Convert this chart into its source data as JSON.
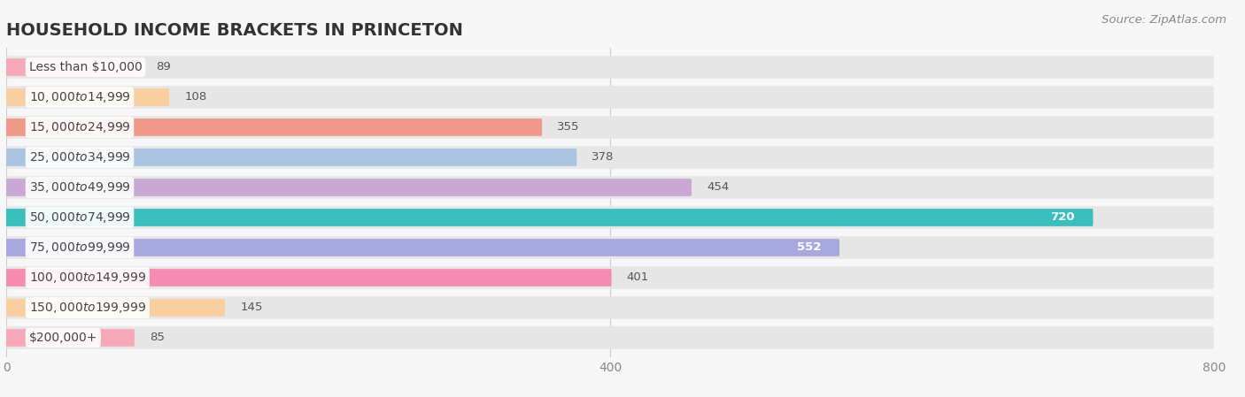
{
  "title": "HOUSEHOLD INCOME BRACKETS IN PRINCETON",
  "source": "Source: ZipAtlas.com",
  "categories": [
    "Less than $10,000",
    "$10,000 to $14,999",
    "$15,000 to $24,999",
    "$25,000 to $34,999",
    "$35,000 to $49,999",
    "$50,000 to $74,999",
    "$75,000 to $99,999",
    "$100,000 to $149,999",
    "$150,000 to $199,999",
    "$200,000+"
  ],
  "values": [
    89,
    108,
    355,
    378,
    454,
    720,
    552,
    401,
    145,
    85
  ],
  "bar_colors": [
    "#f7a8b8",
    "#f9cfa0",
    "#f0998a",
    "#a8c4e0",
    "#c9a8d4",
    "#3abfbf",
    "#a8a8e0",
    "#f78ab0",
    "#f9cfa0",
    "#f7a8b8"
  ],
  "background_color": "#f7f7f7",
  "bar_bg_color": "#e6e6e6",
  "xlim": [
    0,
    800
  ],
  "xticks": [
    0,
    400,
    800
  ],
  "title_fontsize": 14,
  "label_fontsize": 10,
  "value_fontsize": 9.5,
  "source_fontsize": 9.5
}
